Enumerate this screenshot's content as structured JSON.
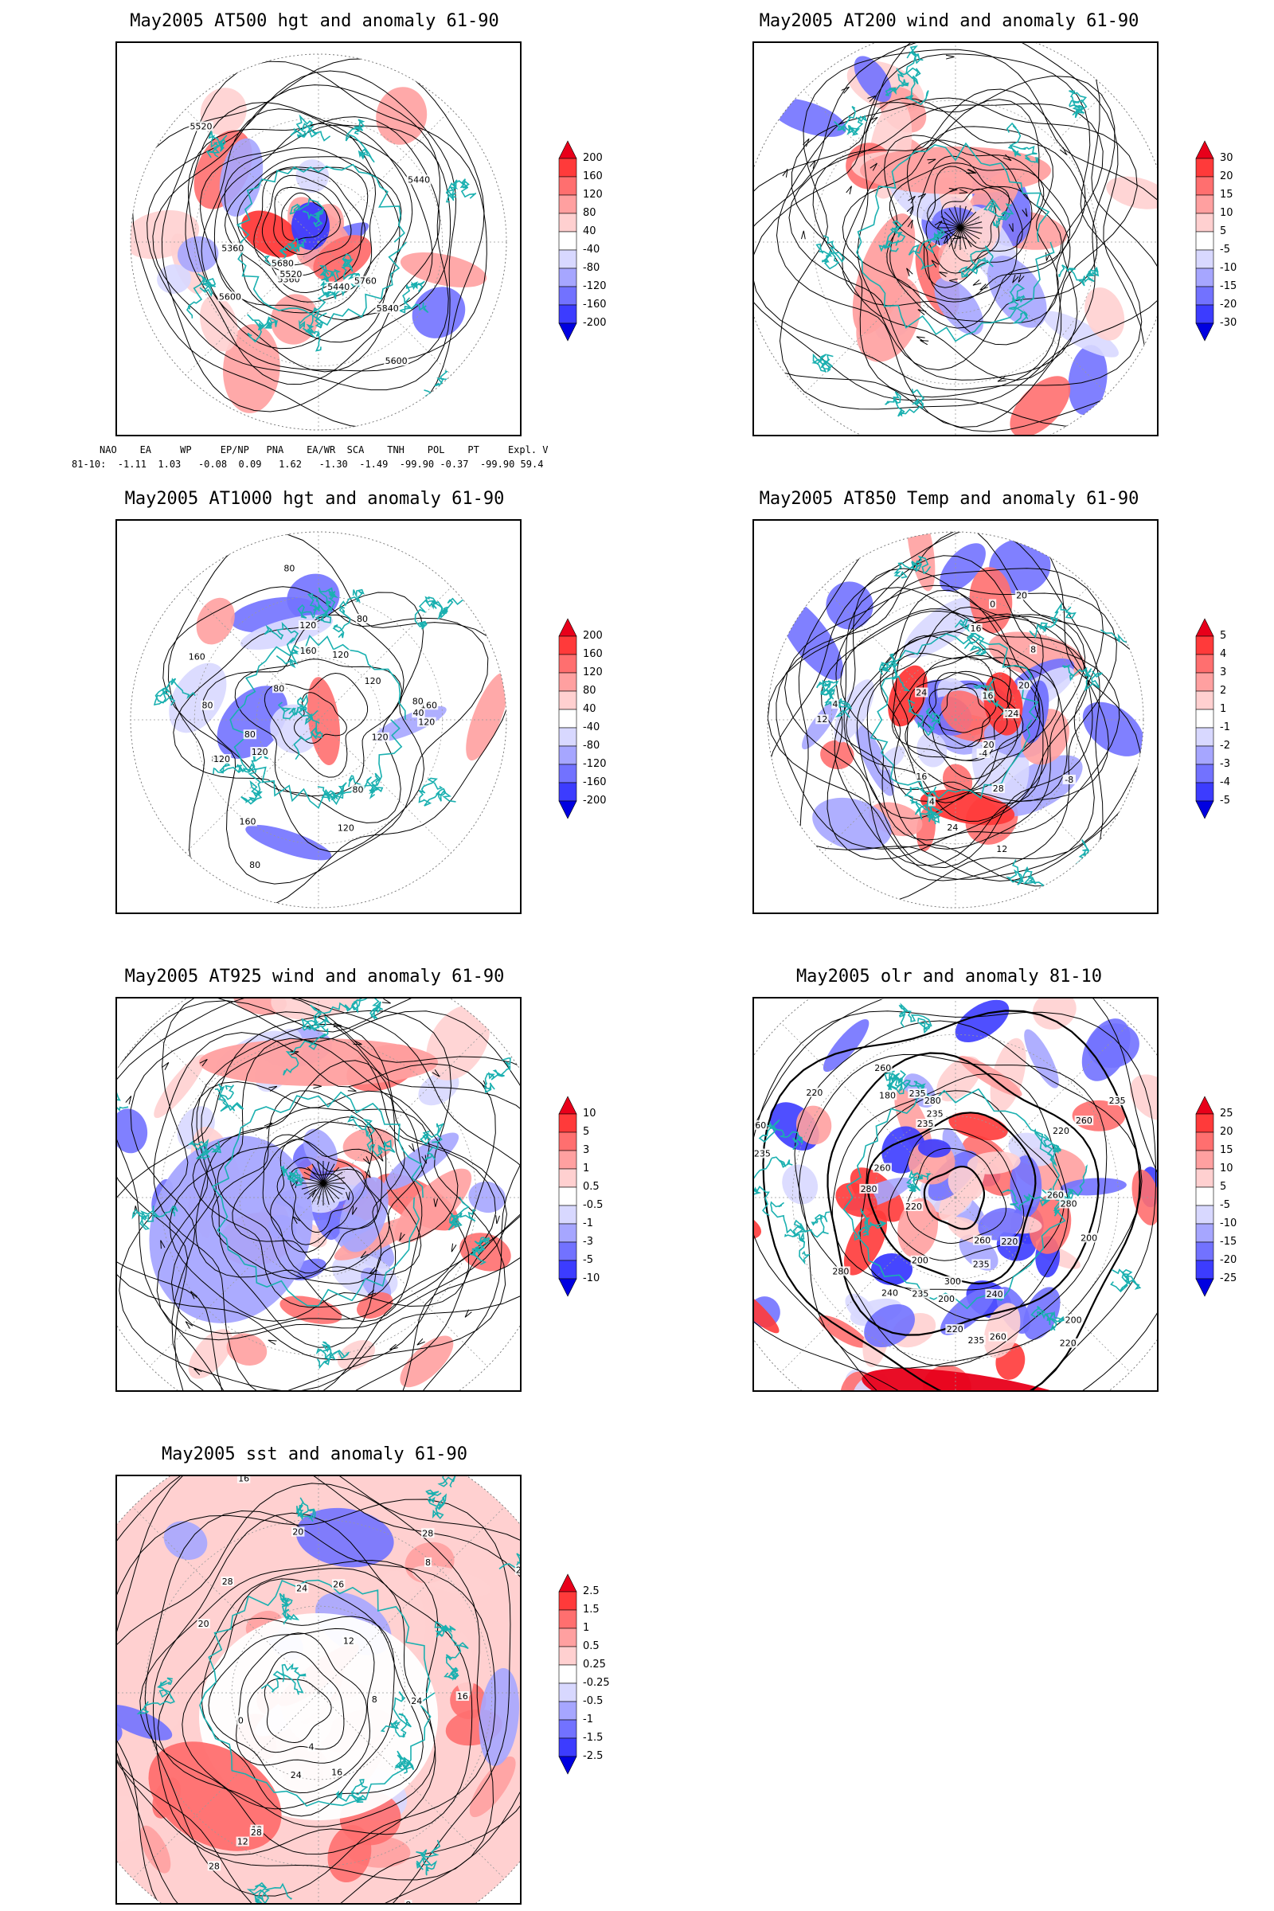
{
  "panels": [
    {
      "id": "p1",
      "title": "May2005 AT500 hgt and anomaly 61-90",
      "colorbar_labels": [
        "200",
        "160",
        "120",
        "80",
        "40",
        "-40",
        "-80",
        "-120",
        "-160",
        "-200"
      ],
      "contour_labels": [
        "5600",
        "5520",
        "5440",
        "5360",
        "5360",
        "5440",
        "5520",
        "5600",
        "5680",
        "5760",
        "5840"
      ]
    },
    {
      "id": "p2",
      "title": "May2005 AT200 wind and anomaly 61-90",
      "colorbar_labels": [
        "30",
        "20",
        "15",
        "10",
        "5",
        "-5",
        "-10",
        "-15",
        "-20",
        "-30"
      ],
      "contour_labels": []
    },
    {
      "id": "p3",
      "title": "May2005 AT1000 hgt and anomaly 61-90",
      "colorbar_labels": [
        "200",
        "160",
        "120",
        "80",
        "40",
        "-40",
        "-80",
        "-120",
        "-160",
        "-200"
      ],
      "contour_labels": [
        "120",
        "80",
        "80",
        "160",
        "120",
        "120",
        "80",
        "40",
        "160",
        "120",
        "160",
        "120",
        "80",
        "80",
        "120",
        "160",
        "120",
        "80",
        "80",
        "80",
        "120",
        "80"
      ]
    },
    {
      "id": "p4",
      "title": "May2005 AT850 Temp and anomaly 61-90",
      "colorbar_labels": [
        "5",
        "4",
        "3",
        "2",
        "1",
        "-1",
        "-2",
        "-3",
        "-4",
        "-5"
      ],
      "contour_labels": [
        "16",
        "12",
        "8",
        "20",
        "16",
        "4",
        "-8",
        "-4",
        "0",
        "16",
        "24",
        "4",
        "8",
        "12",
        "16",
        "20",
        "28",
        "24",
        "24",
        "20"
      ]
    },
    {
      "id": "p5",
      "title": "May2005 AT925 wind and anomaly 61-90",
      "colorbar_labels": [
        "10",
        "5",
        "3",
        "1",
        "0.5",
        "-0.5",
        "-1",
        "-3",
        "-5",
        "-10"
      ],
      "contour_labels": []
    },
    {
      "id": "p6",
      "title": "May2005 olr and anomaly 81-10",
      "colorbar_labels": [
        "25",
        "20",
        "15",
        "10",
        "5",
        "-5",
        "-10",
        "-15",
        "-20",
        "-25"
      ],
      "contour_labels": [
        "220",
        "200",
        "235",
        "240",
        "280",
        "235",
        "260",
        "220",
        "260",
        "235",
        "235",
        "220",
        "200",
        "220",
        "260",
        "200",
        "280",
        "235",
        "220",
        "180",
        "200",
        "300",
        "280",
        "260",
        "240",
        "220",
        "235",
        "260",
        "300",
        "280",
        "260",
        "235",
        "220",
        "260",
        "235"
      ]
    },
    {
      "id": "p7",
      "title": "May2005 sst and anomaly 61-90",
      "colorbar_labels": [
        "2.5",
        "1.5",
        "1",
        "0.5",
        "0.25",
        "-0.25",
        "-0.5",
        "-1",
        "-1.5",
        "-2.5"
      ],
      "contour_labels": [
        "28",
        "28",
        "24",
        "20",
        "16",
        "12",
        "8",
        "4",
        "28",
        "26",
        "24",
        "20",
        "16",
        "12",
        "8",
        "4",
        "0",
        "8",
        "12",
        "16",
        "20",
        "24",
        "28",
        "28"
      ]
    }
  ],
  "teleconnection": {
    "headers": [
      "NAO",
      "EA",
      "WP",
      "EP/NP",
      "PNA",
      "EA/WR",
      "SCA",
      "TNH",
      "POL",
      "PT",
      "Expl. Var."
    ],
    "row_label": "81-10:",
    "values": [
      "-1.11",
      "1.03",
      "-0.08",
      "0.09",
      "1.62",
      "-1.30",
      "-1.49",
      "-99.90",
      "-0.37",
      "-99.90",
      "59.4"
    ]
  },
  "colors": {
    "positive": [
      "#e8001a",
      "#ff3a3a",
      "#ff6f6f",
      "#ffa0a0",
      "#ffd0d0"
    ],
    "negative": [
      "#d8d8ff",
      "#a6a6ff",
      "#7272ff",
      "#3c3cff",
      "#0000e0"
    ],
    "coastline": "#1ab0b0",
    "contour": "#000000"
  }
}
